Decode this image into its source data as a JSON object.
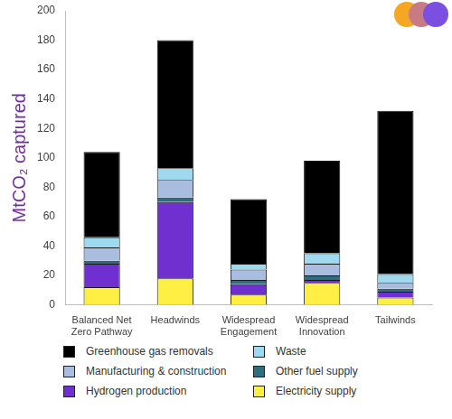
{
  "chart_data": {
    "type": "bar",
    "y_label": "MtCO₂ captured",
    "categories": [
      "Balanced Net Zero Pathway",
      "Headwinds",
      "Widespread Engagement",
      "Widespread Innovation",
      "Tailwinds"
    ],
    "series": [
      {
        "name": "Electricity supply",
        "color": "#ffee44",
        "values": [
          12,
          18,
          7,
          15,
          5
        ]
      },
      {
        "name": "Hydrogen production",
        "color": "#7030d0",
        "values": [
          16,
          52,
          7,
          2,
          4
        ]
      },
      {
        "name": "Other fuel supply",
        "color": "#2f6e7e",
        "values": [
          2,
          3,
          3,
          3,
          2
        ]
      },
      {
        "name": "Manufacturing & construction",
        "color": "#a9bde0",
        "values": [
          9,
          12,
          7,
          8,
          4
        ]
      },
      {
        "name": "Waste",
        "color": "#9fd9f0",
        "values": [
          7,
          8,
          4,
          7,
          6
        ]
      },
      {
        "name": "Greenhouse gas removals",
        "color": "#000000",
        "values": [
          58,
          87,
          44,
          63,
          111
        ]
      }
    ],
    "stacked": true,
    "ylim": [
      0,
      200
    ],
    "yticks": [
      0,
      20,
      40,
      60,
      80,
      100,
      120,
      140,
      160,
      180,
      200
    ],
    "grid": false,
    "legend": "bottom"
  }
}
